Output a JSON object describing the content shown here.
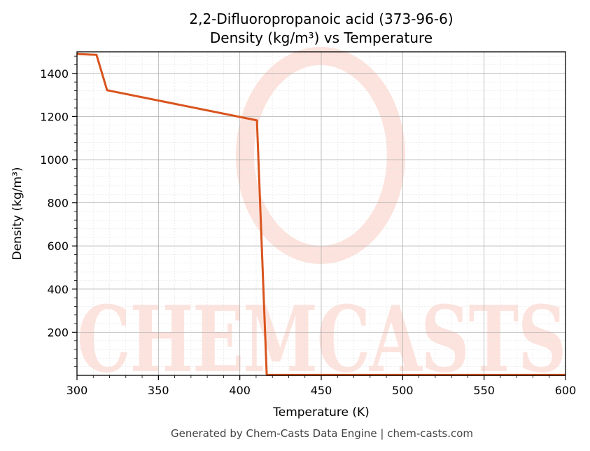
{
  "chart_data": {
    "type": "line",
    "title_line1": "2,2-Difluoropropanoic acid (373-96-6)",
    "title_line2": "Density (kg/m³) vs Temperature",
    "xlabel": "Temperature (K)",
    "ylabel": "Density (kg/m³)",
    "xlim": [
      300,
      600
    ],
    "ylim": [
      0,
      1500
    ],
    "x_ticks": [
      300,
      350,
      400,
      450,
      500,
      550,
      600
    ],
    "y_ticks": [
      200,
      400,
      600,
      800,
      1000,
      1200,
      1400
    ],
    "grid": true,
    "series": [
      {
        "color": "#d9541e",
        "x": [
          300,
          312,
          318.5,
          410.5,
          416.5,
          600
        ],
        "y": [
          1490,
          1486,
          1322,
          1182,
          2,
          2
        ]
      }
    ]
  },
  "watermark": {
    "text": "CHEMCASTS",
    "color": "#fde3dd"
  },
  "footer": {
    "text": "Generated by Chem-Casts Data Engine | chem-casts.com"
  }
}
